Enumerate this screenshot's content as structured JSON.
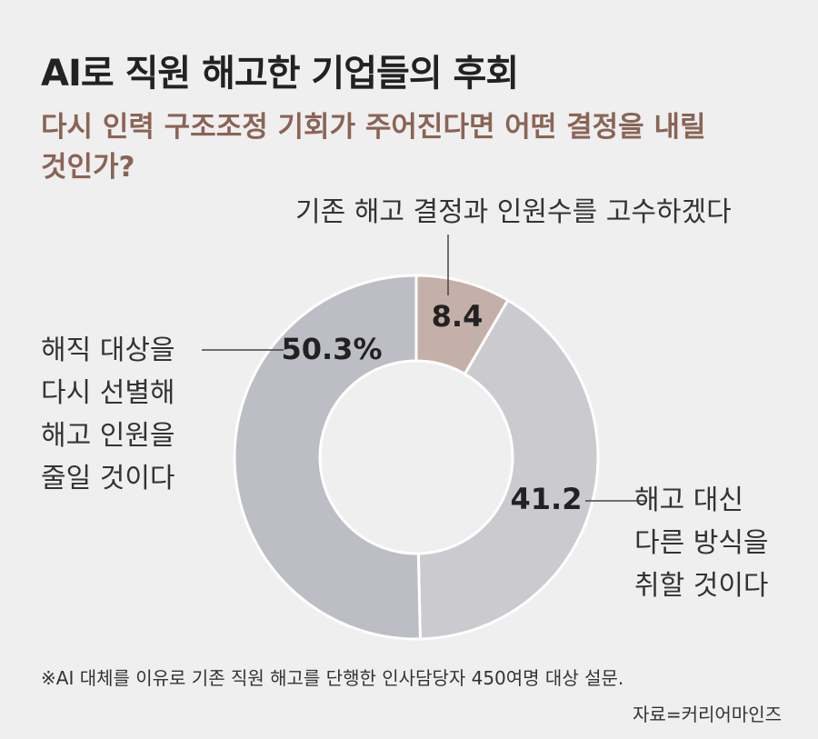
{
  "chart_data": {
    "type": "donut",
    "title": "AI로 직원 해고한 기업들의 후회",
    "subtitle": "다시 인력 구조조정 기회가 주어진다면 어떤 결정을 내릴 것인가?",
    "categories": [
      "기존 해고 결정과 인원수를 고수하겠다",
      "해고 대신 다른 방식을 취할 것이다",
      "해직 대상을 다시 선별해 해고 인원을 줄일 것이다"
    ],
    "values": [
      8.4,
      41.2,
      50.3
    ],
    "value_labels": [
      "8.4",
      "41.2",
      "50.3%"
    ],
    "colors": [
      "#c4b0a8",
      "#cacacf",
      "#bdbdc5"
    ],
    "note": "※AI 대체를 이유로 기존 직원 해고를 단행한 인사담당자 450여명 대상 설문.",
    "source": "자료=커리어마인즈"
  }
}
